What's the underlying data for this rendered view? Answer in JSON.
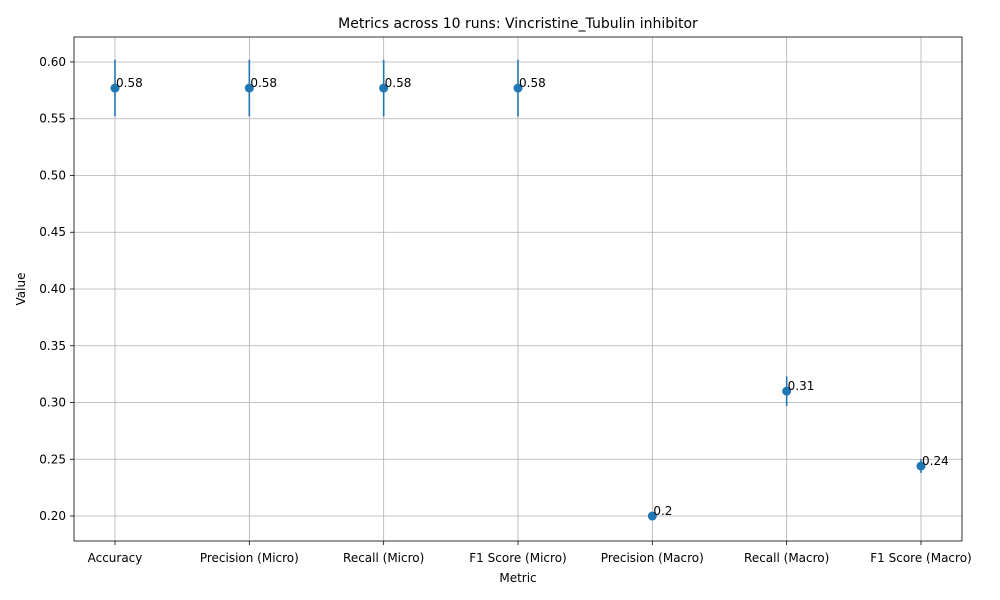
{
  "chart_data": {
    "type": "scatter",
    "title": "Metrics across 10 runs: Vincristine_Tubulin inhibitor",
    "xlabel": "Metric",
    "ylabel": "Value",
    "categories": [
      "Accuracy",
      "Precision (Micro)",
      "Recall (Micro)",
      "F1 Score (Micro)",
      "Precision (Macro)",
      "Recall (Macro)",
      "F1 Score (Macro)"
    ],
    "values": [
      0.577,
      0.577,
      0.577,
      0.577,
      0.2,
      0.31,
      0.244
    ],
    "errors": [
      0.025,
      0.025,
      0.025,
      0.025,
      0.0,
      0.013,
      0.006
    ],
    "value_labels": [
      "0.58",
      "0.58",
      "0.58",
      "0.58",
      "0.2",
      "0.31",
      "0.24"
    ],
    "ylim": [
      0.178,
      0.622
    ],
    "yticks": [
      0.2,
      0.25,
      0.3,
      0.35,
      0.4,
      0.45,
      0.5,
      0.55,
      0.6
    ],
    "ytick_labels": [
      "0.20",
      "0.25",
      "0.30",
      "0.35",
      "0.40",
      "0.45",
      "0.50",
      "0.55",
      "0.60"
    ],
    "grid": true,
    "colors": {
      "series": "#1f77b4",
      "grid": "#b0b0b0",
      "axis": "#000000"
    }
  }
}
